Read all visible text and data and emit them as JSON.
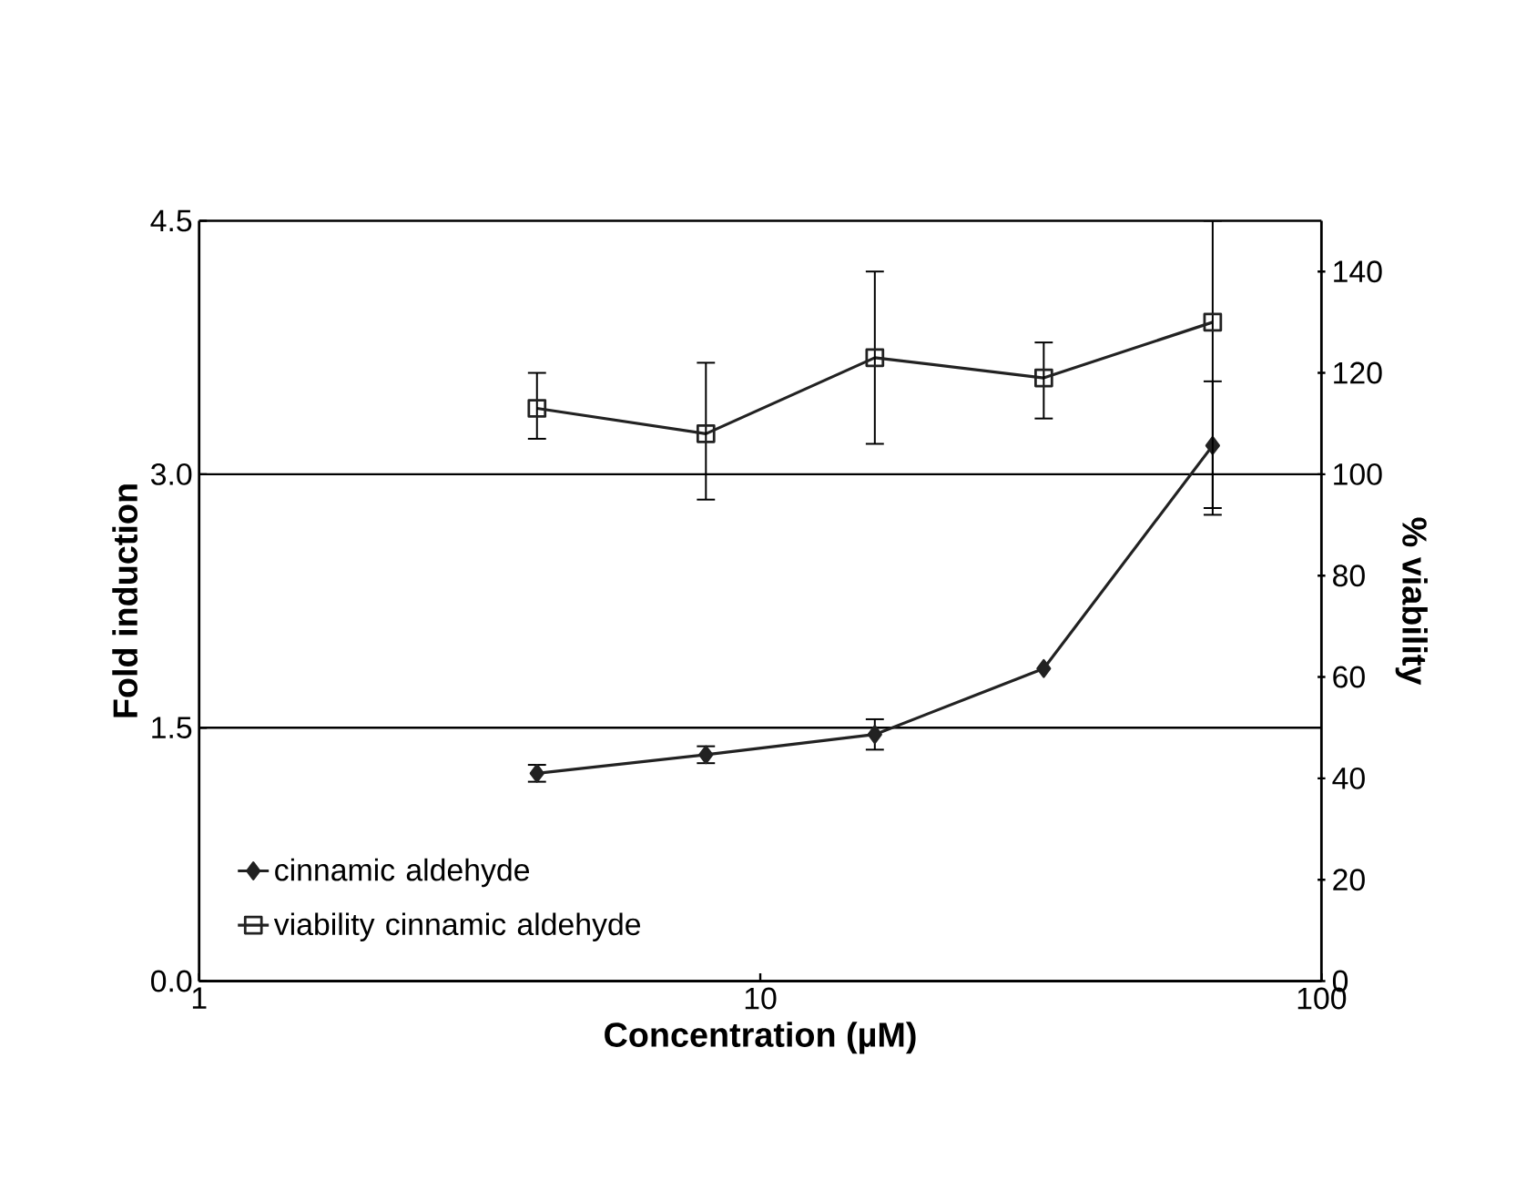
{
  "chart_data": {
    "type": "line",
    "xlabel": "Concentration (µM)",
    "ylabel": "Fold induction",
    "y2label": "% viability",
    "x": [
      4,
      8,
      16,
      32,
      64
    ],
    "log": "x",
    "xlim": [
      1,
      100
    ],
    "xticks": [
      1,
      10,
      100
    ],
    "ylim": [
      0,
      4.5
    ],
    "yticks": [
      {
        "value": 0,
        "label": "0.0"
      },
      {
        "value": 1.5,
        "label": "1.5"
      },
      {
        "value": 3,
        "label": "3.0"
      },
      {
        "value": 4.5,
        "label": "4.5"
      }
    ],
    "y2lim": [
      0,
      150
    ],
    "y2ticks": [
      0,
      20,
      40,
      60,
      80,
      100,
      120,
      140
    ],
    "grid": "y",
    "legend": "bottom left",
    "series": [
      {
        "name": "cinnamic aldehyde",
        "color": "#222222",
        "marker": "diamond",
        "values": [
          1.23,
          1.34,
          1.46,
          1.85,
          3.17
        ],
        "errors": [
          0.05,
          0.05,
          0.09,
          null,
          [
            2.8,
            3.55
          ]
        ]
      },
      {
        "name": "viability  cinnamic aldehyde",
        "color": "#222222",
        "marker": "square",
        "axis": "y2",
        "values": [
          113,
          108,
          123,
          119,
          130
        ],
        "errors": [
          [
            107,
            120
          ],
          [
            95,
            122
          ],
          [
            106,
            140
          ],
          [
            111,
            126
          ],
          [
            92,
            150
          ]
        ]
      }
    ]
  }
}
